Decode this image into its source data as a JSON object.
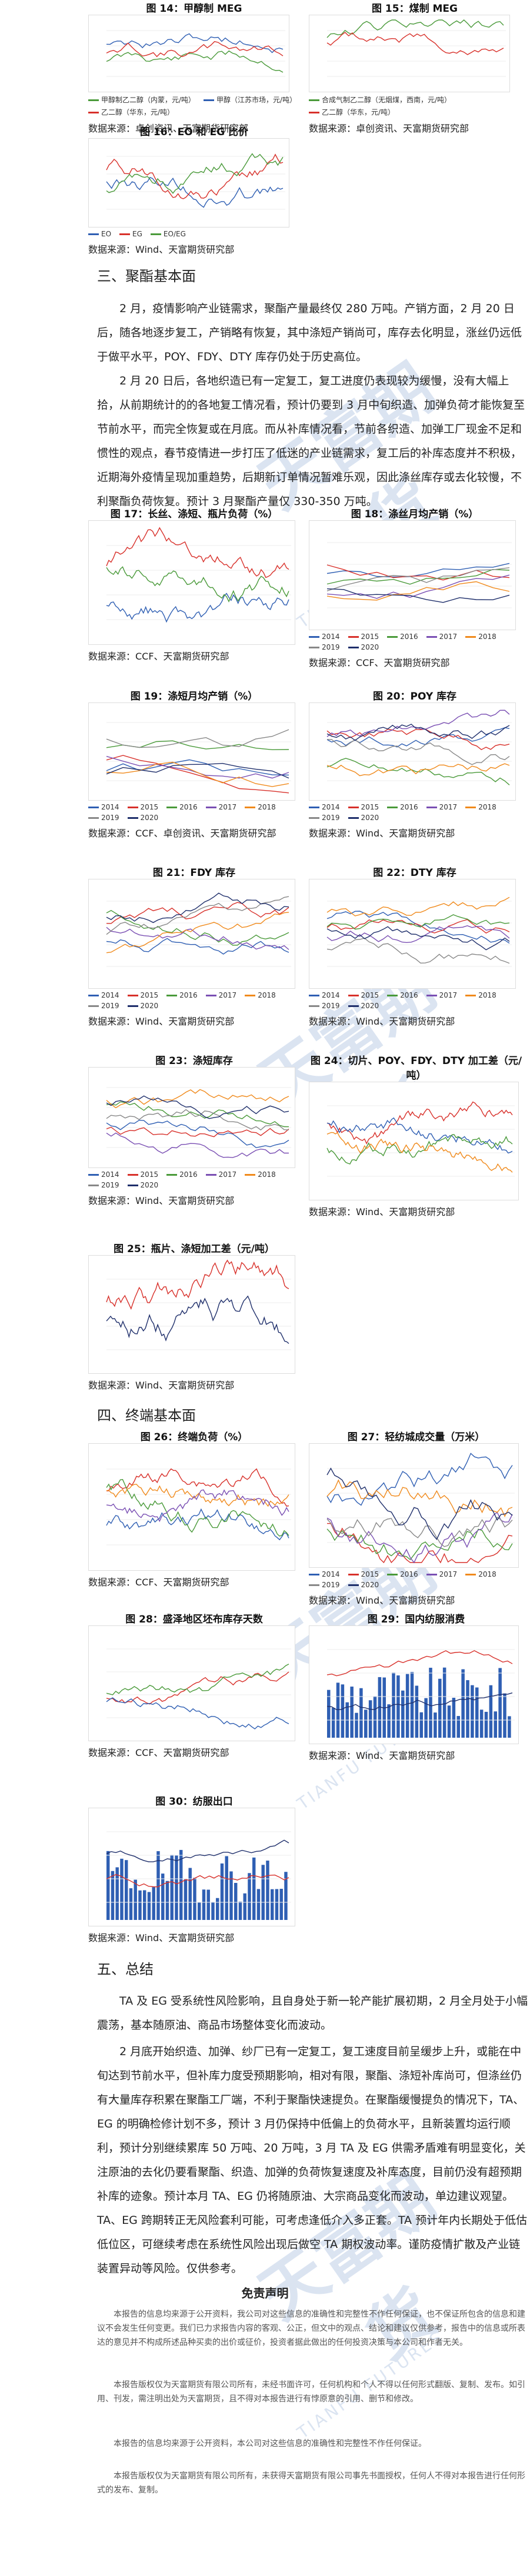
{
  "figures": {
    "f14": {
      "caption": "图 14：甲醇制 MEG",
      "source": "数据来源：卓创资讯、天富期货研究部",
      "legend": [
        "甲醇制乙二醇（内蒙，元/吨）",
        "甲醇（江苏市场，元/吨）",
        "乙二醇（华东，元/吨）"
      ]
    },
    "f15": {
      "caption": "图 15：煤制 MEG",
      "source": "数据来源：卓创资讯、天富期货研究部",
      "legend": [
        "合成气制乙二醇（无烟煤，西南，元/吨）",
        "乙二醇（华东，元/吨）"
      ]
    },
    "f16": {
      "caption": "图 16：EO 和 EG 比价",
      "source": "数据来源：Wind、天富期货研究部",
      "legend": [
        "EO",
        "EG",
        "EO/EG"
      ]
    },
    "f17": {
      "caption": "图 17：长丝、涤短、瓶片负荷（%）",
      "source": "数据来源：CCF、天富期货研究部"
    },
    "f18": {
      "caption": "图 18：涤丝月均产销（%）",
      "source": "数据来源：CCF、天富期货研究部",
      "legend": [
        "2014",
        "2015",
        "2016",
        "2017",
        "2018",
        "2019",
        "2020"
      ]
    },
    "f19": {
      "caption": "图 19：涤短月均产销（%）",
      "source": "数据来源：CCF、卓创资讯、天富期货研究部",
      "legend": [
        "2014",
        "2015",
        "2016",
        "2017",
        "2018",
        "2019",
        "2020"
      ]
    },
    "f20": {
      "caption": "图 20：POY 库存",
      "source": "数据来源：Wind、天富期货研究部",
      "legend": [
        "2014",
        "2015",
        "2016",
        "2017",
        "2018",
        "2019",
        "2020"
      ]
    },
    "f21": {
      "caption": "图 21：FDY 库存",
      "source": "数据来源：Wind、天富期货研究部",
      "legend": [
        "2014",
        "2015",
        "2016",
        "2017",
        "2018",
        "2019",
        "2020"
      ]
    },
    "f22": {
      "caption": "图 22：DTY 库存",
      "source": "数据来源：Wind、天富期货研究部",
      "legend": [
        "2014",
        "2015",
        "2016",
        "2017",
        "2018",
        "2019",
        "2020"
      ]
    },
    "f23": {
      "caption": "图 23：涤短库存",
      "source": "数据来源：Wind、天富期货研究部",
      "legend": [
        "2014",
        "2015",
        "2016",
        "2017",
        "2018",
        "2019",
        "2020"
      ]
    },
    "f24": {
      "caption": "图 24：切片、POY、FDY、DTY 加工差（元/吨）",
      "source": "数据来源：Wind、天富期货研究部"
    },
    "f25": {
      "caption": "图 25：瓶片、涤短加工差（元/吨）",
      "source": "数据来源：Wind、天富期货研究部"
    },
    "f26": {
      "caption": "图 26：终端负荷（%）",
      "source": "数据来源：CCF、天富期货研究部"
    },
    "f27": {
      "caption": "图 27：轻纺城成交量（万米）",
      "source": "数据来源：Wind、天富期货研究部",
      "legend": [
        "2014",
        "2015",
        "2016",
        "2017",
        "2018",
        "2019",
        "2020"
      ]
    },
    "f28": {
      "caption": "图 28：盛泽地区坯布库存天数",
      "source": "数据来源：CCF、天富期货研究部"
    },
    "f29": {
      "caption": "图 29：国内纺服消费",
      "source": "数据来源：Wind、天富期货研究部"
    },
    "f30": {
      "caption": "图 30：纺服出口",
      "source": "数据来源：Wind、天富期货研究部"
    }
  },
  "sections": {
    "s3": "三、聚酯基本面",
    "s4": "四、终端基本面",
    "s5": "五、总结"
  },
  "paragraphs": {
    "p1": "2 月，疫情影响产业链需求，聚酯产量最终仅 280 万吨。产销方面，2 月 20 日后，随各地逐步复工，产销略有恢复，其中涤短产销尚可，库存去化明显，涨丝仍远低于做平水平，POY、FDY、DTY 库存仍处于历史高位。",
    "p2": "2 月 20 日后，各地织造已有一定复工，复工进度仍表现较为缓慢，没有大幅上拾，从前期统计的的各地复工情况看，预计仍要到 3 月中旬织造、加弹负荷才能恢复至节前水平，而完全恢复或在月底。而从补库情况看，节前各织造、加弹工厂现金不足和惯性的观点，春节疫情进一步打压了低迷的产业链需求，复工后的补库态度并不积极，近期海外疫情呈现加重趋势，后期新订单情况暂难乐观，因此涤丝库存或去化较慢，不利聚酯负荷恢复。预计 3 月聚酯产量仅 330-350 万吨。",
    "p3": "TA 及 EG 受系统性风险影响，且自身处于新一轮产能扩展初期，2 月全月处于小幅震荡，基本随原油、商品市场整体变化而波动。",
    "p4": "2 月底开始织造、加弹、纱厂已有一定复工，复工速度目前呈缓步上升，或能在中旬达到节前水平，但补库力度受预期影响，相对有限，聚酯、涤短补库尚可，但涤丝仍有大量库存积累在聚酯工厂端，不利于聚酯快速提负。在聚酯缓慢提负的情况下，TA、EG 的明确检修计划不多，预计 3 月仍保持中低偏上的负荷水平，且新装置均运行顺利，预计分别继续累库 50 万吨、20 万吨，3 月 TA 及 EG 供需矛盾难有明显变化，关注原油的去化仍要看聚酯、织造、加弹的负荷恢复速度及补库态度，目前仍没有超预期补库的迹象。预计本月 TA、EG 仍将随原油、大宗商品变化而波动，单边建议观望。TA、EG 跨期转正无风险套利可能，可考虑逢低介入多正套。TA 预计年内长期处于低估低位区，可继续考虑在系统性风险出现后做空 TA 期权波动率。谨防疫情扩散及产业链装置异动等风险。仅供参考。"
  },
  "disclaimer": {
    "title": "免责声明",
    "lines": [
      "本报告的信息均来源于公开资料，我公司对这些信息的准确性和完整性不作任何保证，也不保证所包含的信息和建议不会发生任何变更。我们已力求报告内容的客观、公正，但文中的观点、结论和建议仅供参考，报告中的信息或所表达的意见并不构成所述品种买卖的出价或征价，投资者据此做出的任何投资决策与本公司和作者无关。",
      "本报告版权仅为天富期货有限公司所有，未经书面许可，任何机构和个人不得以任何形式翻版、复制、发布。如引用、刊发，需注明出处为天富期货，且不得对本报告进行有悖原意的引用、删节和修改。",
      "本报告的信息均来源于公开资料，本公司对这些信息的准确性和完整性不作任何保证。",
      "本报告版权仅为天富期货有限公司所有，未获得天富期货有限公司事先书面授权，任何人不得对本报告进行任何形式的发布、复制。"
    ]
  },
  "watermark": {
    "cn": "天富期货",
    "en": "TIANFU FUTURES"
  },
  "colors": {
    "blue": "#2f5fb3",
    "red": "#d8312b",
    "green": "#4a9a3a",
    "orange": "#f08a1c",
    "purple": "#7a4fb3",
    "gray": "#888888",
    "navy": "#1f2f6b"
  }
}
